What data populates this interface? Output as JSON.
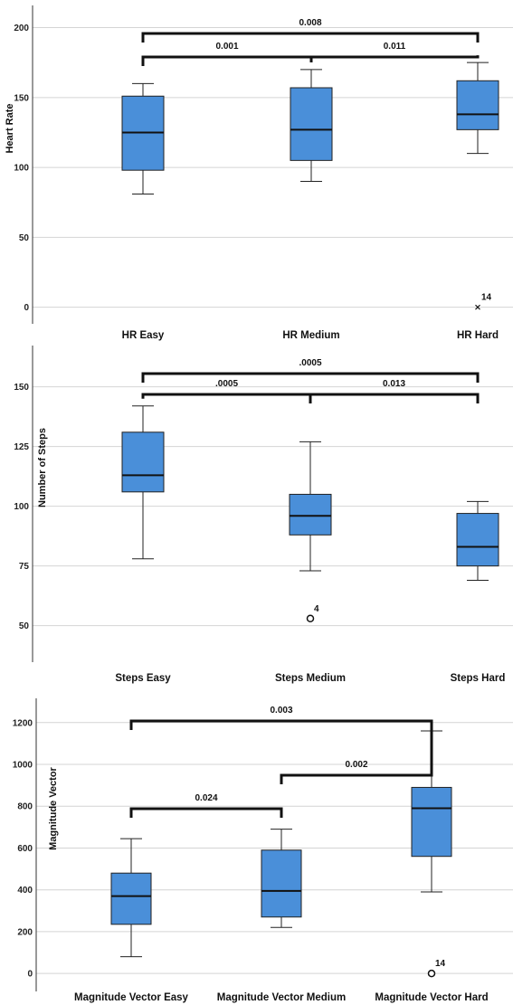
{
  "colors": {
    "box_fill": "#4a8fd9",
    "grid": "#d4d4d4",
    "text": "#111111"
  },
  "chart_data": [
    {
      "type": "box",
      "ylabel": "Heart Rate",
      "ylim": [
        -8,
        212
      ],
      "yticks": [
        "0",
        "50",
        "100",
        "150",
        "200"
      ],
      "grid": true,
      "categories": [
        "HR Easy",
        "HR Medium",
        "HR Hard"
      ],
      "boxes": [
        {
          "min": 81,
          "q1": 98,
          "median": 125,
          "q3": 151,
          "max": 160
        },
        {
          "min": 90,
          "q1": 105,
          "median": 127,
          "q3": 157,
          "max": 170
        },
        {
          "min": 110,
          "q1": 127,
          "median": 138,
          "q3": 162,
          "max": 175
        }
      ],
      "outliers": [
        {
          "category": 2,
          "value": 0,
          "label": "14",
          "marker": "x"
        }
      ],
      "comparisons": [
        {
          "from": 0,
          "to": 1,
          "level": 1,
          "label": "0.001"
        },
        {
          "from": 1,
          "to": 2,
          "level": 1,
          "label": "0.011"
        },
        {
          "from": 0,
          "to": 2,
          "level": 2,
          "label": "0.008"
        }
      ]
    },
    {
      "type": "box",
      "ylabel": "Number of Steps",
      "ylim": [
        37,
        165
      ],
      "yticks": [
        "50",
        "75",
        "100",
        "125",
        "150"
      ],
      "grid": true,
      "categories": [
        "Steps Easy",
        "Steps Medium",
        "Steps Hard"
      ],
      "boxes": [
        {
          "min": 78,
          "q1": 106,
          "median": 113,
          "q3": 131,
          "max": 142
        },
        {
          "min": 73,
          "q1": 88,
          "median": 96,
          "q3": 105,
          "max": 127
        },
        {
          "min": 69,
          "q1": 75,
          "median": 83,
          "q3": 97,
          "max": 102
        }
      ],
      "outliers": [
        {
          "category": 1,
          "value": 53,
          "label": "4",
          "marker": "o"
        }
      ],
      "comparisons": [
        {
          "from": 0,
          "to": 1,
          "level": 1,
          "label": ".0005"
        },
        {
          "from": 1,
          "to": 2,
          "level": 1,
          "label": "0.013"
        },
        {
          "from": 0,
          "to": 2,
          "level": 2,
          "label": ".0005"
        }
      ]
    },
    {
      "type": "box",
      "ylabel": "Magnitude Vector",
      "ylim": [
        -60,
        1290
      ],
      "yticks": [
        "0",
        "200",
        "400",
        "600",
        "800",
        "1000",
        "1200"
      ],
      "grid": true,
      "categories": [
        "Magnitude Vector Easy",
        "Magnitude Vector Medium",
        "Magnitude Vector Hard"
      ],
      "boxes": [
        {
          "min": 80,
          "q1": 235,
          "median": 370,
          "q3": 480,
          "max": 645
        },
        {
          "min": 220,
          "q1": 270,
          "median": 395,
          "q3": 590,
          "max": 690
        },
        {
          "min": 390,
          "q1": 560,
          "median": 790,
          "q3": 890,
          "max": 1160
        }
      ],
      "outliers": [
        {
          "category": 2,
          "value": 0,
          "label": "14",
          "marker": "o"
        }
      ],
      "comparisons": [
        {
          "from": 0,
          "to": 1,
          "level": 1,
          "label": "0.024"
        },
        {
          "from": 1,
          "to": 2,
          "level": 2,
          "label": "0.002"
        },
        {
          "from": 0,
          "to": 2,
          "level": 3,
          "label": "0.003"
        }
      ]
    }
  ]
}
